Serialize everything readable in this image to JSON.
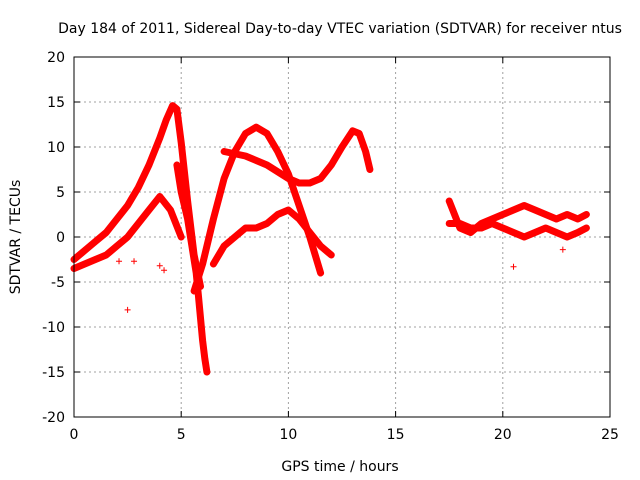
{
  "chart_data": {
    "type": "scatter",
    "title": "Day 184 of 2011, Sidereal Day-to-day VTEC variation (SDTVAR) for receiver ntus",
    "xlabel": "GPS time / hours",
    "ylabel": "SDTVAR / TECUs",
    "xlim": [
      0,
      25
    ],
    "ylim": [
      -20,
      20
    ],
    "xticks": [
      0,
      5,
      10,
      15,
      20,
      25
    ],
    "xtick_labels": [
      "0",
      "5",
      "10",
      "15",
      "20",
      "25"
    ],
    "yticks": [
      -20,
      -15,
      -10,
      -5,
      0,
      5,
      10,
      15,
      20
    ],
    "ytick_labels": [
      "-20",
      "-15",
      "-10",
      "-5",
      "0",
      "5",
      "10",
      "15",
      "20"
    ],
    "grid": true,
    "marker": "+",
    "series": [
      {
        "name": "SDTVAR",
        "color": "#ff0000",
        "tracks": [
          {
            "name": "arc-rise-to-15",
            "x": [
              0.0,
              0.5,
              1.0,
              1.5,
              2.0,
              2.5,
              3.0,
              3.5,
              4.0,
              4.3,
              4.6,
              4.8,
              5.0,
              5.3,
              5.6,
              5.9
            ],
            "y": [
              -2.5,
              -1.5,
              -0.5,
              0.5,
              2.0,
              3.5,
              5.5,
              8.0,
              11.0,
              13.0,
              14.6,
              14.2,
              10.5,
              4.0,
              -2.0,
              -5.5
            ]
          },
          {
            "name": "arc-dip-to-minus-15",
            "x": [
              4.8,
              5.0,
              5.3,
              5.5,
              5.7,
              5.8,
              5.9,
              6.0,
              6.1,
              6.2
            ],
            "y": [
              8.0,
              5.0,
              2.0,
              -1.0,
              -4.0,
              -6.5,
              -9.0,
              -11.5,
              -13.5,
              -15.0
            ]
          },
          {
            "name": "arc-peak-12-at-8",
            "x": [
              5.6,
              6.0,
              6.5,
              7.0,
              7.5,
              8.0,
              8.5,
              9.0,
              9.5,
              10.0,
              10.5,
              11.0,
              11.5
            ],
            "y": [
              -6.0,
              -3.0,
              2.0,
              6.5,
              9.5,
              11.5,
              12.2,
              11.5,
              9.5,
              7.0,
              3.5,
              0.0,
              -4.0
            ]
          },
          {
            "name": "arc-peak-12-at-13",
            "x": [
              7.0,
              8.0,
              9.0,
              10.0,
              10.5,
              11.0,
              11.5,
              12.0,
              12.5,
              13.0,
              13.3,
              13.6,
              13.8
            ],
            "y": [
              9.5,
              9.0,
              8.0,
              6.5,
              6.0,
              6.0,
              6.5,
              8.0,
              10.0,
              11.8,
              11.5,
              9.5,
              7.5
            ]
          },
          {
            "name": "arc-low-band",
            "x": [
              6.5,
              7.0,
              7.5,
              8.0,
              8.5,
              9.0,
              9.5,
              10.0,
              10.5,
              11.0,
              11.5,
              12.0
            ],
            "y": [
              -3.0,
              -1.0,
              0.0,
              1.0,
              1.0,
              1.5,
              2.5,
              3.0,
              2.0,
              0.5,
              -1.0,
              -2.0
            ]
          },
          {
            "name": "arc-early-band",
            "x": [
              0.0,
              0.5,
              1.0,
              1.5,
              2.0,
              2.5,
              3.0,
              3.5,
              4.0,
              4.5,
              5.0
            ],
            "y": [
              -3.5,
              -3.0,
              -2.5,
              -2.0,
              -1.0,
              0.0,
              1.5,
              3.0,
              4.5,
              3.0,
              0.0
            ]
          },
          {
            "name": "arc-late-1",
            "x": [
              17.5,
              18.0,
              18.5,
              19.0,
              19.5,
              20.0,
              20.5,
              21.0,
              21.5,
              22.0,
              22.5,
              23.0,
              23.5,
              23.9
            ],
            "y": [
              4.0,
              1.0,
              0.5,
              1.5,
              2.0,
              2.5,
              3.0,
              3.5,
              3.0,
              2.5,
              2.0,
              2.5,
              2.0,
              2.5
            ]
          },
          {
            "name": "arc-late-2",
            "x": [
              17.5,
              18.0,
              18.5,
              19.0,
              19.5,
              20.0,
              20.5,
              21.0,
              21.5,
              22.0,
              22.5,
              23.0,
              23.5,
              23.9
            ],
            "y": [
              1.5,
              1.5,
              1.0,
              1.0,
              1.5,
              1.0,
              0.5,
              0.0,
              0.5,
              1.0,
              0.5,
              0.0,
              0.5,
              1.0
            ]
          }
        ],
        "outliers": {
          "x": [
            2.1,
            2.5,
            2.8,
            4.0,
            4.2,
            20.5,
            22.8
          ],
          "y": [
            -2.7,
            -8.1,
            -2.7,
            -3.2,
            -3.7,
            -3.3,
            -1.4
          ]
        }
      }
    ]
  }
}
